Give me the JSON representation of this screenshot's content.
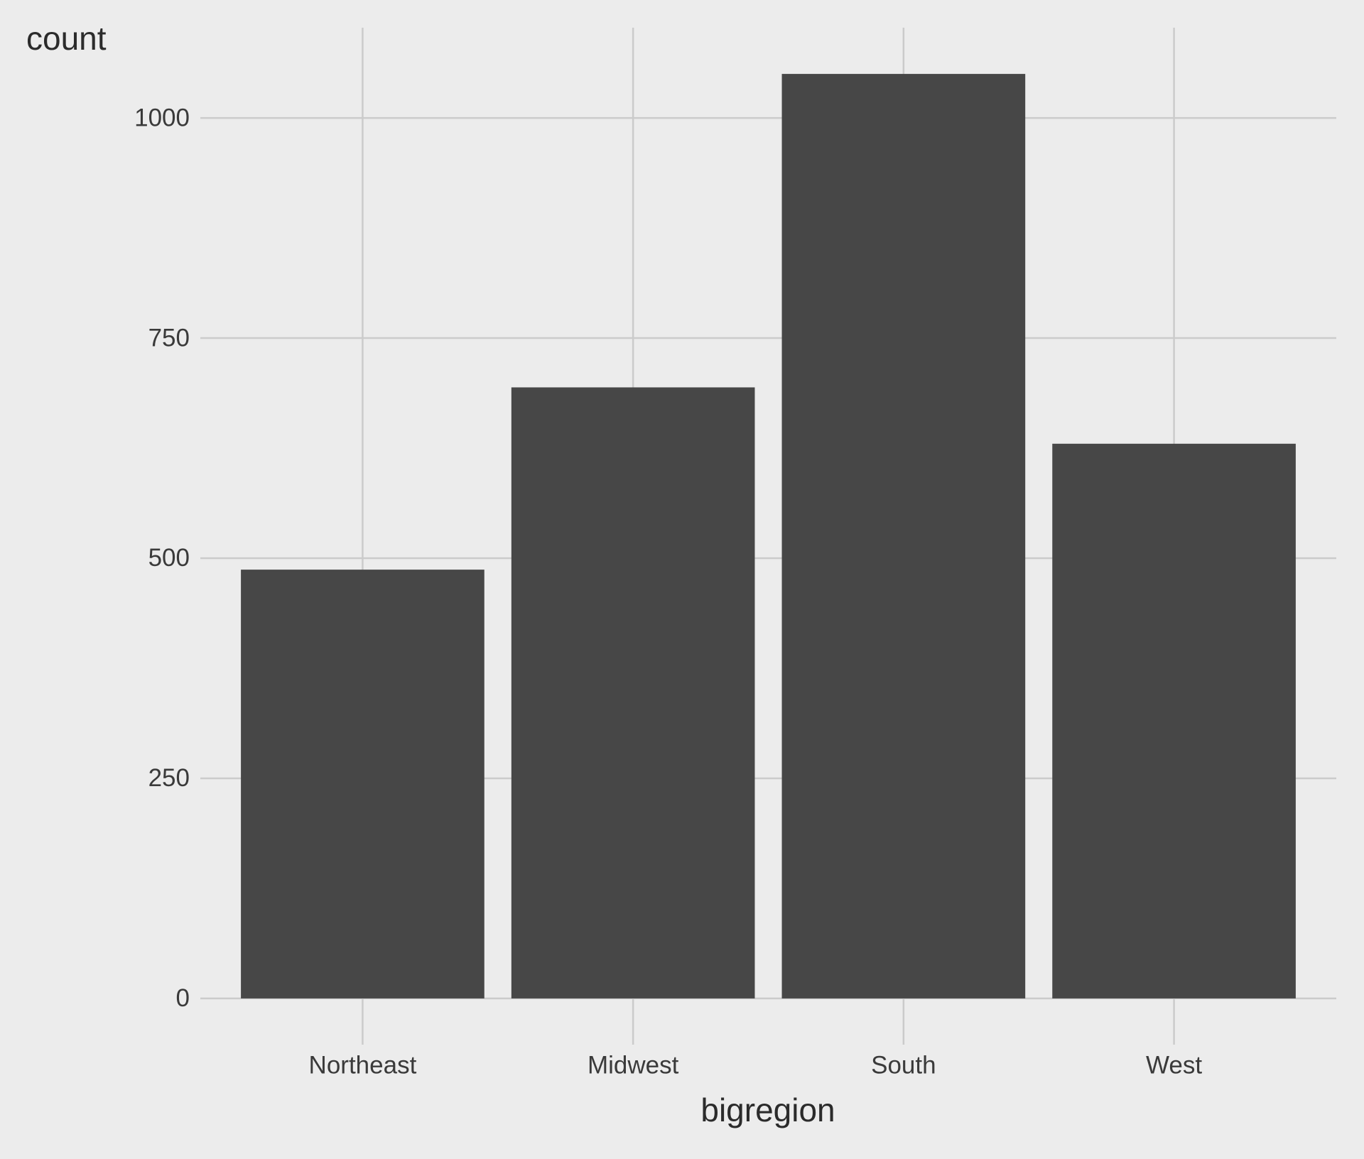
{
  "chart_data": {
    "type": "bar",
    "x_label": "bigregion",
    "y_label": "count",
    "categories": [
      "Northeast",
      "Midwest",
      "South",
      "West"
    ],
    "values": [
      487,
      694,
      1050,
      630
    ],
    "color": "#474747",
    "ylim": [
      -52.5,
      1102.5
    ],
    "yticks": [
      0,
      250,
      500,
      750,
      1000
    ],
    "grid": true
  }
}
